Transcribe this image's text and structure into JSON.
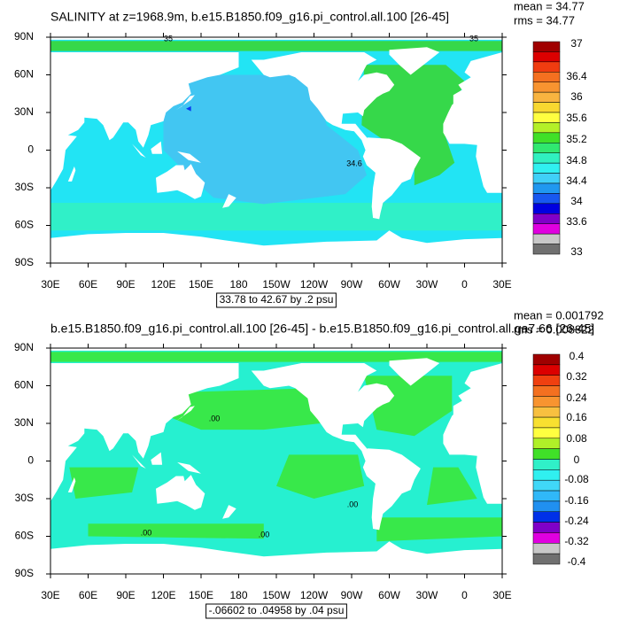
{
  "panels": [
    {
      "title": "SALINITY at z=1968.9m, b.e15.B1850.f09_g16.pi_control.all.100 [26-45]",
      "mean": "mean = 34.77",
      "rms": "rms = 34.77",
      "lat_labels": [
        "90N",
        "60N",
        "30N",
        "0",
        "30S",
        "60S",
        "90S"
      ],
      "lon_labels": [
        "30E",
        "60E",
        "90E",
        "120E",
        "150E",
        "180",
        "150W",
        "120W",
        "90W",
        "60W",
        "30W",
        "0",
        "30E"
      ],
      "range": "33.78 to 42.67 by .2 psu",
      "contour_labels": [
        "35",
        "35",
        "34.6"
      ],
      "colorbar": {
        "labels": [
          "37",
          "36.4",
          "36",
          "35.6",
          "35.2",
          "34.8",
          "34.4",
          "34",
          "33.6",
          "33"
        ],
        "colors": [
          "#a00000",
          "#dc0000",
          "#f03c10",
          "#f47020",
          "#f89430",
          "#f8b440",
          "#f8d830",
          "#ffff40",
          "#b4f028",
          "#40e028",
          "#30e870",
          "#30f0c0",
          "#30f0f0",
          "#40d0f8",
          "#2098f0",
          "#1858f0",
          "#0000e0",
          "#8000c8",
          "#e000e0",
          "#c8c8c8",
          "#707070"
        ]
      }
    },
    {
      "title": "b.e15.B1850.f09_g16.pi_control.all.100 [26-45] - b.e15.B1850.f09_g16.pi_control.all.ga7.66 [26-45]",
      "mean": "mean = 0.001792",
      "rms": "rms = 0.008822",
      "lat_labels": [
        "90N",
        "60N",
        "30N",
        "0",
        "30S",
        "60S",
        "90S"
      ],
      "lon_labels": [
        "30E",
        "60E",
        "90E",
        "120E",
        "150E",
        "180",
        "150W",
        "120W",
        "90W",
        "60W",
        "30W",
        "0",
        "30E"
      ],
      "range": "-.06602 to .04958 by .04 psu",
      "contour_labels": [
        ".00",
        ".00",
        ".00",
        ".00"
      ],
      "colorbar": {
        "labels": [
          "0.4",
          "0.32",
          "0.24",
          "0.16",
          "0.08",
          "0",
          "-0.08",
          "-0.16",
          "-0.24",
          "-0.32",
          "-0.4"
        ],
        "colors": [
          "#a00000",
          "#dc0000",
          "#f04010",
          "#f47020",
          "#f89430",
          "#f8c040",
          "#f8e030",
          "#ffff40",
          "#b0f028",
          "#40e028",
          "#30f0c8",
          "#30f0f0",
          "#40d8f8",
          "#30b8f8",
          "#2090f0",
          "#0030e8",
          "#8000c8",
          "#e000e0",
          "#c8c8c8",
          "#707070"
        ]
      }
    }
  ]
}
